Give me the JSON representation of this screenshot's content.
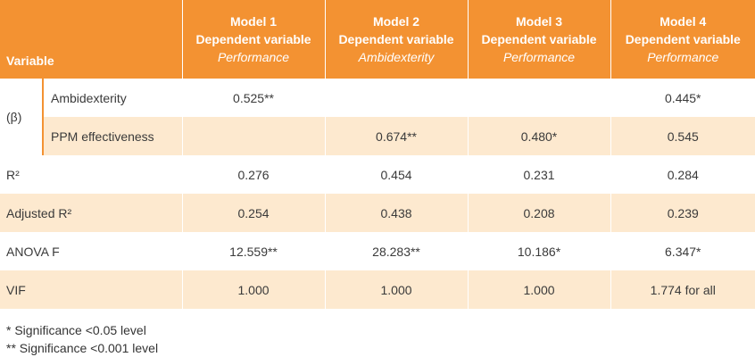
{
  "header": {
    "variable": "Variable",
    "models": [
      {
        "title": "Model 1",
        "dv_label": "Dependent variable",
        "dv_name": "Performance"
      },
      {
        "title": "Model 2",
        "dv_label": "Dependent variable",
        "dv_name": "Ambidexterity"
      },
      {
        "title": "Model 3",
        "dv_label": "Dependent variable",
        "dv_name": "Performance"
      },
      {
        "title": "Model 4",
        "dv_label": "Dependent variable",
        "dv_name": "Performance"
      }
    ]
  },
  "beta_group": {
    "label": "(β)",
    "rows": [
      {
        "label": "Ambidexterity",
        "values": [
          "0.525**",
          "",
          "",
          "0.445*"
        ]
      },
      {
        "label": "PPM effectiveness",
        "values": [
          "",
          "0.674**",
          "0.480*",
          "0.545"
        ]
      }
    ]
  },
  "rows": [
    {
      "label": "R²",
      "values": [
        "0.276",
        "0.454",
        "0.231",
        "0.284"
      ]
    },
    {
      "label": "Adjusted R²",
      "values": [
        "0.254",
        "0.438",
        "0.208",
        "0.239"
      ]
    },
    {
      "label": "ANOVA F",
      "values": [
        "12.559**",
        "28.283**",
        "10.186*",
        "6.347*"
      ]
    },
    {
      "label": "VIF",
      "values": [
        "1.000",
        "1.000",
        "1.000",
        "1.774 for all"
      ]
    }
  ],
  "notes": [
    "* Significance <0.05 level",
    "** Significance <0.001 level"
  ],
  "colors": {
    "header_bg": "#f39232",
    "stripe_bg": "#fde9cf",
    "rule": "#f39232"
  }
}
